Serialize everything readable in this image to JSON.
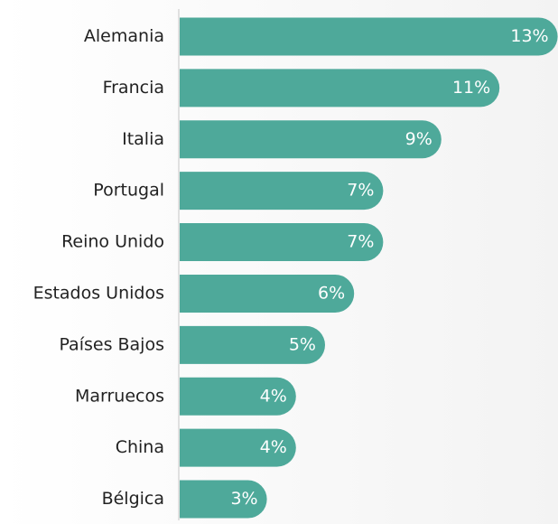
{
  "chart_data": {
    "type": "bar",
    "orientation": "horizontal",
    "categories": [
      "Alemania",
      "Francia",
      "Italia",
      "Portugal",
      "Reino Unido",
      "Estados Unidos",
      "Países Bajos",
      "Marruecos",
      "China",
      "Bélgica"
    ],
    "values": [
      13,
      11,
      9,
      7,
      7,
      6,
      5,
      4,
      4,
      3
    ],
    "value_labels": [
      "13%",
      "11%",
      "9%",
      "7%",
      "7%",
      "6%",
      "5%",
      "4%",
      "4%",
      "3%"
    ],
    "color": "#4ea99a"
  }
}
